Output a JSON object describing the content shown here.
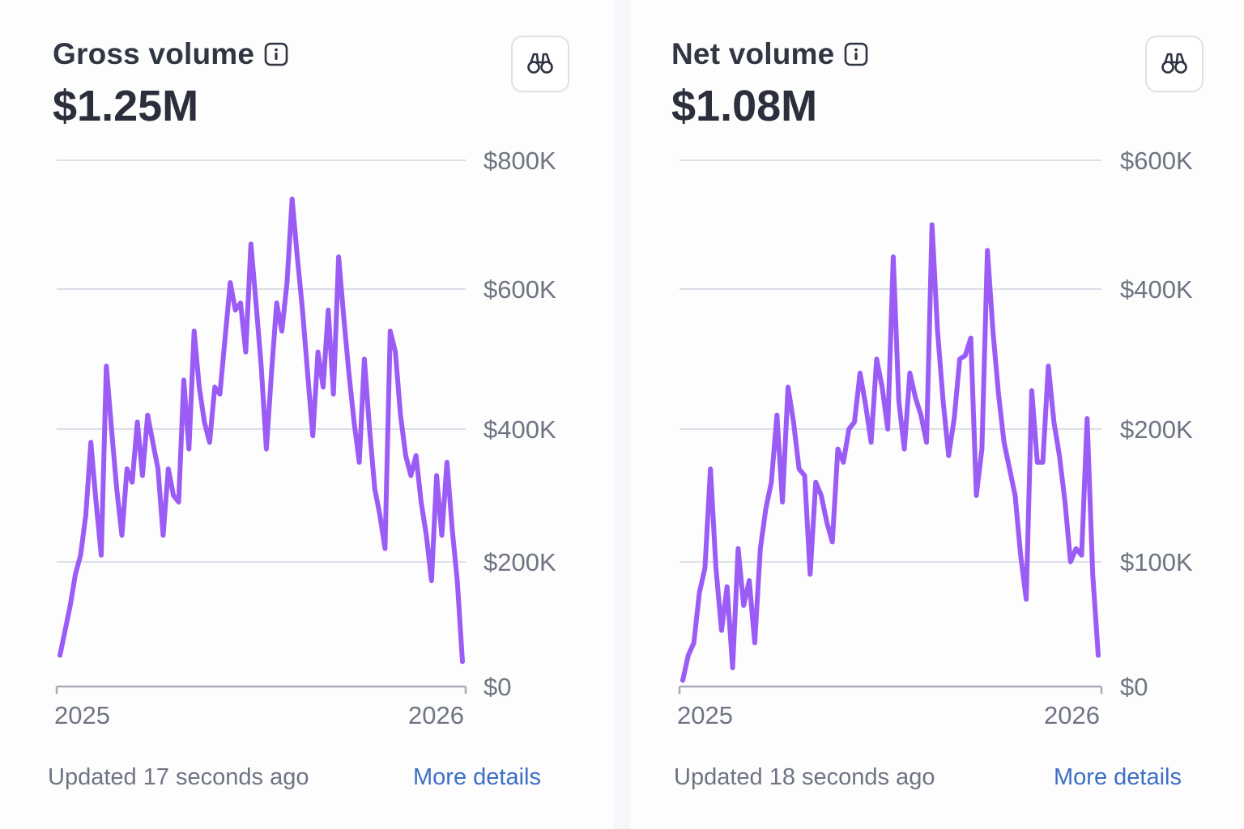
{
  "colors": {
    "line": "#9b5cf5",
    "grid": "#dcdee8",
    "axis": "#a7abb8",
    "link": "#3d6fc4"
  },
  "cards": [
    {
      "title": "Gross volume",
      "info_icon": "info-icon",
      "explore_icon": "binoculars-icon",
      "amount": "$1.25M",
      "footer": {
        "updated": "Updated 17 seconds ago",
        "link": "More details"
      },
      "chart_data": {
        "type": "line",
        "x_ticks": [
          "2025",
          "2026"
        ],
        "y_ticks": [
          "$0",
          "$200K",
          "$400K",
          "$600K",
          "$800K"
        ],
        "y_tick_values": [
          0,
          200,
          400,
          600,
          800
        ],
        "ylim": [
          0,
          800
        ],
        "grid": true,
        "series": [
          {
            "values": [
              50,
              90,
              130,
              180,
              210,
              270,
              380,
              290,
              210,
              490,
              400,
              310,
              240,
              340,
              320,
              410,
              330,
              420,
              380,
              340,
              240,
              340,
              300,
              290,
              470,
              370,
              540,
              460,
              410,
              380,
              460,
              450,
              530,
              610,
              570,
              580,
              510,
              670,
              580,
              490,
              370,
              480,
              580,
              540,
              610,
              740,
              650,
              570,
              480,
              390,
              510,
              460,
              570,
              450,
              650,
              560,
              480,
              410,
              350,
              500,
              400,
              310,
              270,
              220,
              540,
              510,
              420,
              360,
              330,
              360,
              290,
              240,
              170,
              330,
              240,
              350,
              250,
              170,
              40
            ]
          }
        ]
      }
    },
    {
      "title": "Net volume",
      "info_icon": "info-icon",
      "explore_icon": "binoculars-icon",
      "amount": "$1.08M",
      "footer": {
        "updated": "Updated 18 seconds ago",
        "link": "More details"
      },
      "chart_data": {
        "type": "line",
        "x_ticks": [
          "2025",
          "2026"
        ],
        "y_ticks": [
          "$0",
          "$100K",
          "$200K",
          "$400K",
          "$600K"
        ],
        "y_tick_values": [
          0,
          100,
          200,
          400,
          600
        ],
        "ylim": [
          0,
          600
        ],
        "grid": true,
        "series": [
          {
            "values": [
              5,
              25,
              35,
              75,
              95,
              170,
              95,
              45,
              80,
              15,
              110,
              65,
              85,
              35,
              110,
              140,
              160,
              220,
              145,
              260,
              210,
              170,
              165,
              90,
              160,
              150,
              130,
              115,
              185,
              175,
              200,
              210,
              280,
              235,
              190,
              300,
              260,
              200,
              450,
              240,
              185,
              280,
              245,
              220,
              190,
              500,
              340,
              240,
              180,
              215,
              300,
              305,
              330,
              150,
              185,
              460,
              340,
              250,
              190,
              170,
              150,
              105,
              70,
              255,
              175,
              175,
              290,
              210,
              180,
              145,
              100,
              110,
              105,
              215,
              90,
              25
            ]
          }
        ]
      }
    }
  ]
}
